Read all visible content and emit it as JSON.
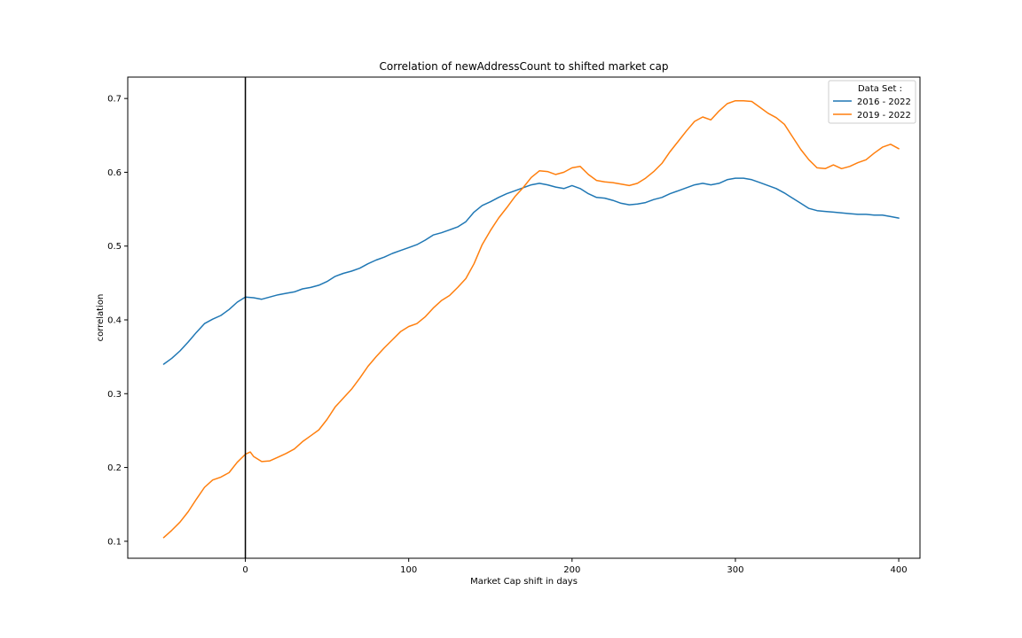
{
  "chart_data": {
    "type": "line",
    "title": "Correlation of newAddressCount to shifted market cap",
    "xlabel": "Market Cap shift in days",
    "ylabel": "correlation",
    "xlim": [
      -72,
      413
    ],
    "ylim": [
      0.077,
      0.729
    ],
    "x_ticks": [
      0,
      100,
      200,
      300,
      400
    ],
    "y_ticks": [
      0.1,
      0.2,
      0.3,
      0.4,
      0.5,
      0.6,
      0.7
    ],
    "x_tick_labels": [
      "0",
      "100",
      "200",
      "300",
      "400"
    ],
    "y_tick_labels": [
      "0.1",
      "0.2",
      "0.3",
      "0.4",
      "0.5",
      "0.6",
      "0.7"
    ],
    "vertical_line": {
      "x": 0,
      "color": "#000000"
    },
    "grid": false,
    "legend": {
      "title": "Data Set :",
      "placement": "top-right"
    },
    "series": [
      {
        "name": "2016 - 2022",
        "color": "#1f77b4",
        "points": [
          [
            -50,
            0.34
          ],
          [
            -45,
            0.348
          ],
          [
            -40,
            0.358
          ],
          [
            -35,
            0.37
          ],
          [
            -30,
            0.383
          ],
          [
            -25,
            0.395
          ],
          [
            -20,
            0.401
          ],
          [
            -15,
            0.406
          ],
          [
            -10,
            0.414
          ],
          [
            -5,
            0.424
          ],
          [
            0,
            0.431
          ],
          [
            5,
            0.43
          ],
          [
            10,
            0.428
          ],
          [
            15,
            0.431
          ],
          [
            20,
            0.434
          ],
          [
            25,
            0.436
          ],
          [
            30,
            0.438
          ],
          [
            35,
            0.442
          ],
          [
            40,
            0.444
          ],
          [
            45,
            0.447
          ],
          [
            50,
            0.452
          ],
          [
            55,
            0.459
          ],
          [
            60,
            0.463
          ],
          [
            65,
            0.466
          ],
          [
            70,
            0.47
          ],
          [
            75,
            0.476
          ],
          [
            80,
            0.481
          ],
          [
            85,
            0.485
          ],
          [
            90,
            0.49
          ],
          [
            95,
            0.494
          ],
          [
            100,
            0.498
          ],
          [
            105,
            0.502
          ],
          [
            110,
            0.508
          ],
          [
            115,
            0.515
          ],
          [
            120,
            0.518
          ],
          [
            125,
            0.522
          ],
          [
            130,
            0.526
          ],
          [
            135,
            0.533
          ],
          [
            140,
            0.546
          ],
          [
            145,
            0.555
          ],
          [
            150,
            0.56
          ],
          [
            155,
            0.566
          ],
          [
            160,
            0.571
          ],
          [
            165,
            0.575
          ],
          [
            170,
            0.579
          ],
          [
            175,
            0.583
          ],
          [
            180,
            0.585
          ],
          [
            185,
            0.583
          ],
          [
            190,
            0.58
          ],
          [
            195,
            0.578
          ],
          [
            200,
            0.582
          ],
          [
            205,
            0.578
          ],
          [
            210,
            0.571
          ],
          [
            215,
            0.566
          ],
          [
            220,
            0.565
          ],
          [
            225,
            0.562
          ],
          [
            230,
            0.558
          ],
          [
            235,
            0.556
          ],
          [
            240,
            0.557
          ],
          [
            245,
            0.559
          ],
          [
            250,
            0.563
          ],
          [
            255,
            0.566
          ],
          [
            260,
            0.571
          ],
          [
            265,
            0.575
          ],
          [
            270,
            0.579
          ],
          [
            275,
            0.583
          ],
          [
            280,
            0.585
          ],
          [
            285,
            0.583
          ],
          [
            290,
            0.585
          ],
          [
            295,
            0.59
          ],
          [
            300,
            0.592
          ],
          [
            305,
            0.592
          ],
          [
            310,
            0.59
          ],
          [
            315,
            0.586
          ],
          [
            320,
            0.582
          ],
          [
            325,
            0.578
          ],
          [
            330,
            0.572
          ],
          [
            335,
            0.565
          ],
          [
            340,
            0.558
          ],
          [
            345,
            0.551
          ],
          [
            350,
            0.548
          ],
          [
            355,
            0.547
          ],
          [
            360,
            0.546
          ],
          [
            365,
            0.545
          ],
          [
            370,
            0.544
          ],
          [
            375,
            0.543
          ],
          [
            380,
            0.543
          ],
          [
            385,
            0.542
          ],
          [
            390,
            0.542
          ],
          [
            395,
            0.54
          ],
          [
            400,
            0.538
          ]
        ]
      },
      {
        "name": "2019 - 2022",
        "color": "#ff7f0e",
        "points": [
          [
            -50,
            0.105
          ],
          [
            -45,
            0.115
          ],
          [
            -40,
            0.126
          ],
          [
            -35,
            0.14
          ],
          [
            -30,
            0.157
          ],
          [
            -25,
            0.173
          ],
          [
            -20,
            0.183
          ],
          [
            -15,
            0.187
          ],
          [
            -10,
            0.193
          ],
          [
            -5,
            0.207
          ],
          [
            0,
            0.218
          ],
          [
            3,
            0.221
          ],
          [
            5,
            0.215
          ],
          [
            10,
            0.208
          ],
          [
            15,
            0.209
          ],
          [
            20,
            0.214
          ],
          [
            25,
            0.219
          ],
          [
            30,
            0.225
          ],
          [
            35,
            0.235
          ],
          [
            40,
            0.243
          ],
          [
            45,
            0.251
          ],
          [
            50,
            0.265
          ],
          [
            55,
            0.282
          ],
          [
            60,
            0.294
          ],
          [
            65,
            0.306
          ],
          [
            70,
            0.321
          ],
          [
            75,
            0.337
          ],
          [
            80,
            0.35
          ],
          [
            85,
            0.362
          ],
          [
            90,
            0.373
          ],
          [
            95,
            0.384
          ],
          [
            100,
            0.391
          ],
          [
            105,
            0.395
          ],
          [
            110,
            0.404
          ],
          [
            115,
            0.416
          ],
          [
            120,
            0.426
          ],
          [
            125,
            0.433
          ],
          [
            130,
            0.444
          ],
          [
            135,
            0.456
          ],
          [
            140,
            0.476
          ],
          [
            145,
            0.502
          ],
          [
            150,
            0.521
          ],
          [
            155,
            0.538
          ],
          [
            160,
            0.552
          ],
          [
            165,
            0.567
          ],
          [
            170,
            0.579
          ],
          [
            175,
            0.593
          ],
          [
            180,
            0.602
          ],
          [
            185,
            0.601
          ],
          [
            190,
            0.597
          ],
          [
            195,
            0.6
          ],
          [
            200,
            0.606
          ],
          [
            205,
            0.608
          ],
          [
            210,
            0.597
          ],
          [
            215,
            0.589
          ],
          [
            220,
            0.587
          ],
          [
            225,
            0.586
          ],
          [
            230,
            0.584
          ],
          [
            235,
            0.582
          ],
          [
            240,
            0.585
          ],
          [
            245,
            0.592
          ],
          [
            250,
            0.601
          ],
          [
            255,
            0.612
          ],
          [
            260,
            0.628
          ],
          [
            265,
            0.642
          ],
          [
            270,
            0.656
          ],
          [
            275,
            0.669
          ],
          [
            280,
            0.675
          ],
          [
            285,
            0.671
          ],
          [
            290,
            0.683
          ],
          [
            295,
            0.693
          ],
          [
            300,
            0.697
          ],
          [
            305,
            0.697
          ],
          [
            310,
            0.696
          ],
          [
            315,
            0.688
          ],
          [
            320,
            0.68
          ],
          [
            325,
            0.674
          ],
          [
            330,
            0.665
          ],
          [
            335,
            0.648
          ],
          [
            340,
            0.631
          ],
          [
            345,
            0.617
          ],
          [
            350,
            0.606
          ],
          [
            355,
            0.605
          ],
          [
            360,
            0.61
          ],
          [
            365,
            0.605
          ],
          [
            370,
            0.608
          ],
          [
            375,
            0.613
          ],
          [
            380,
            0.617
          ],
          [
            385,
            0.626
          ],
          [
            390,
            0.634
          ],
          [
            395,
            0.638
          ],
          [
            400,
            0.632
          ]
        ]
      }
    ]
  }
}
